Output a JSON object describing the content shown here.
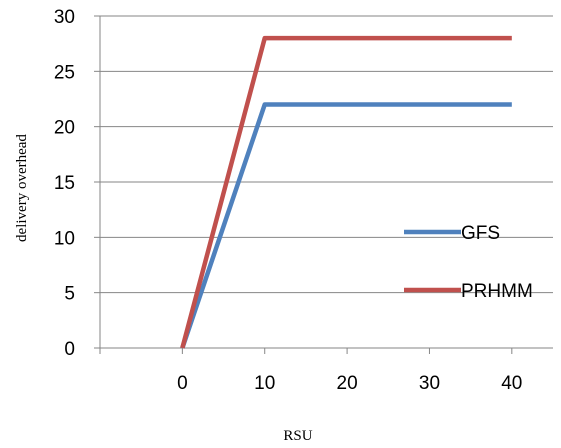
{
  "chart_data": {
    "type": "line",
    "x": [
      0,
      10,
      40
    ],
    "series": [
      {
        "name": "GFS",
        "values": [
          0,
          22,
          22
        ],
        "color": "#4F81BD"
      },
      {
        "name": "PRHMM",
        "values": [
          0,
          28,
          28
        ],
        "color": "#C0504D"
      }
    ],
    "xlabel": "RSU",
    "ylabel": "delivery overhead",
    "xlim": [
      -10,
      45
    ],
    "ylim": [
      0,
      30
    ],
    "xticks": [
      0,
      10,
      20,
      30,
      40
    ],
    "yticks": [
      0,
      5,
      10,
      15,
      20,
      25,
      30
    ],
    "grid": "horizontal",
    "legend_position": "right"
  }
}
